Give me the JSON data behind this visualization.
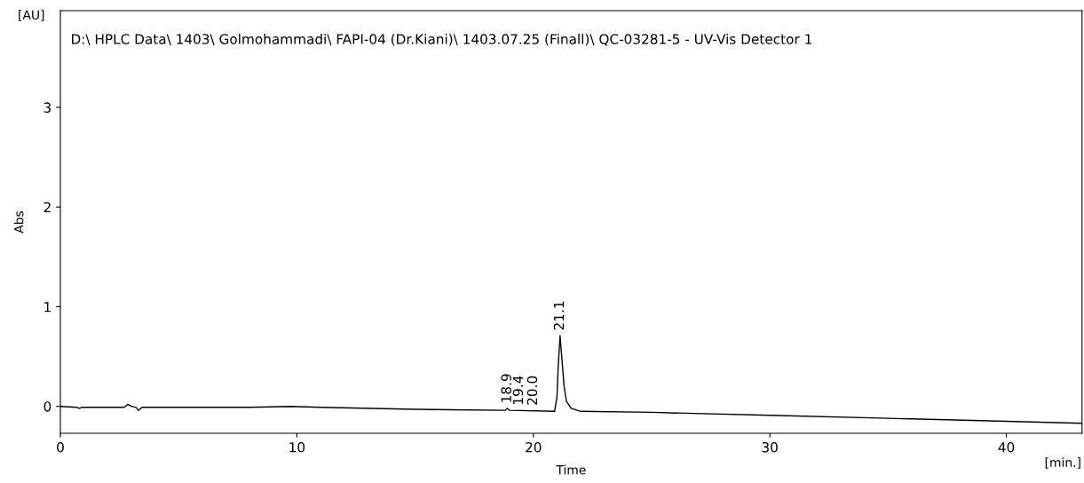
{
  "chart_data": {
    "type": "line",
    "title": "D:\\ HPLC Data\\ 1403\\ Golmohammadi\\ FAPI-04 (Dr.Kiani)\\ 1403.07.25 (Finall)\\ QC-03281-5 - UV-Vis Detector 1",
    "xlabel": "Time",
    "ylabel": "Abs",
    "x": [
      0,
      0.7,
      0.8,
      0.9,
      2.7,
      2.85,
      3.0,
      3.2,
      3.3,
      3.45,
      5,
      8,
      9.7,
      11,
      15,
      18.8,
      18.9,
      19.0,
      20.9,
      21.0,
      21.05,
      21.13,
      21.2,
      21.3,
      21.4,
      21.6,
      22,
      25,
      30,
      35,
      40,
      43.2
    ],
    "series": [
      {
        "color": "#000000",
        "values": [
          0.0,
          -0.01,
          -0.02,
          -0.01,
          -0.01,
          0.02,
          0.0,
          -0.01,
          -0.04,
          -0.01,
          -0.01,
          -0.01,
          0.0,
          -0.01,
          -0.03,
          -0.04,
          -0.02,
          -0.04,
          -0.05,
          0.1,
          0.4,
          0.71,
          0.5,
          0.2,
          0.05,
          -0.02,
          -0.05,
          -0.06,
          -0.09,
          -0.12,
          -0.15,
          -0.17
        ]
      }
    ],
    "annotations": [
      {
        "text": "18.9",
        "x": 18.9,
        "y": -0.02
      },
      {
        "text": "19.4",
        "x": 19.4,
        "y": -0.04
      },
      {
        "text": "20.0",
        "x": 20.0,
        "y": -0.042
      },
      {
        "text": "21.1",
        "x": 21.13,
        "y": 0.71
      },
      "[AU]",
      "[min.]"
    ],
    "xlim": [
      0,
      43.2
    ],
    "ylim": [
      -0.27,
      3.97
    ],
    "xticks": [
      0,
      10,
      20,
      30,
      40
    ],
    "yticks": [
      0,
      1,
      2,
      3
    ],
    "grid": false,
    "legend": false,
    "marker": "none",
    "line_style": "solid"
  }
}
